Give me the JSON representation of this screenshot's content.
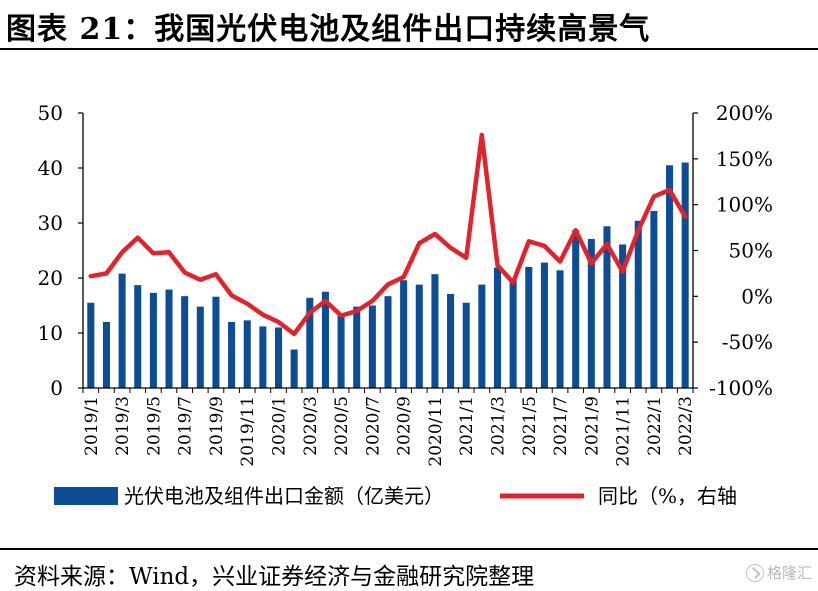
{
  "page": {
    "title": "图表 21：我国光伏电池及组件出口持续高景气",
    "source": "资料来源：Wind，兴业证券经济与金融研究院整理",
    "watermark": "格隆汇",
    "watermark_icon": "check-circle-icon"
  },
  "chart_data": {
    "type": "bar+line",
    "title": "",
    "categories": [
      "2019/1",
      "2019/2",
      "2019/3",
      "2019/4",
      "2019/5",
      "2019/6",
      "2019/7",
      "2019/8",
      "2019/9",
      "2019/10",
      "2019/11",
      "2019/12",
      "2020/1",
      "2020/2",
      "2020/3",
      "2020/4",
      "2020/5",
      "2020/6",
      "2020/7",
      "2020/8",
      "2020/9",
      "2020/10",
      "2020/11",
      "2020/12",
      "2021/1",
      "2021/2",
      "2021/3",
      "2021/4",
      "2021/5",
      "2021/6",
      "2021/7",
      "2021/8",
      "2021/9",
      "2021/10",
      "2021/11",
      "2021/12",
      "2022/1",
      "2022/2",
      "2022/3"
    ],
    "tick_labels": [
      "2019/1",
      "2019/3",
      "2019/5",
      "2019/7",
      "2019/9",
      "2019/11",
      "2020/1",
      "2020/3",
      "2020/5",
      "2020/7",
      "2020/9",
      "2020/11",
      "2021/1",
      "2021/3",
      "2021/5",
      "2021/7",
      "2021/9",
      "2021/11",
      "2022/1",
      "2022/3"
    ],
    "series": [
      {
        "name": "光伏电池及组件出口金额（亿美元）",
        "type": "bar",
        "axis": "left",
        "color": "#0c4d96",
        "values": [
          15.5,
          12,
          20.8,
          18.7,
          17.3,
          17.9,
          16.7,
          14.8,
          16.6,
          12,
          12.3,
          11.2,
          11,
          7,
          16.4,
          17.5,
          13.3,
          14.8,
          15,
          16.7,
          19.6,
          18.8,
          20.7,
          17.1,
          15.5,
          18.8,
          21.9,
          19.7,
          22,
          22.8,
          21.4,
          28.7,
          27.1,
          29.4,
          26.1,
          30.4,
          32.2,
          40.5,
          41
        ]
      },
      {
        "name": "同比（%，右轴",
        "type": "line",
        "axis": "right",
        "color": "#e3232c",
        "values": [
          22,
          25,
          48,
          64,
          47,
          48,
          26,
          18,
          24,
          1,
          -8,
          -20,
          -28,
          -41,
          -18,
          -5,
          -21,
          -16,
          -5,
          13,
          21,
          58,
          68,
          53,
          42,
          176,
          34,
          15,
          60,
          55,
          38,
          72,
          36,
          57,
          27,
          72,
          109,
          116,
          87
        ]
      }
    ],
    "y_left": {
      "min": 0,
      "max": 50,
      "ticks": [
        "0",
        "10",
        "20",
        "30",
        "40",
        "50"
      ]
    },
    "y_right": {
      "min": -100,
      "max": 200,
      "ticks": [
        "-100%",
        "-50%",
        "0%",
        "50%",
        "100%",
        "150%",
        "200%"
      ]
    },
    "grid": false,
    "legend_position": "bottom"
  }
}
